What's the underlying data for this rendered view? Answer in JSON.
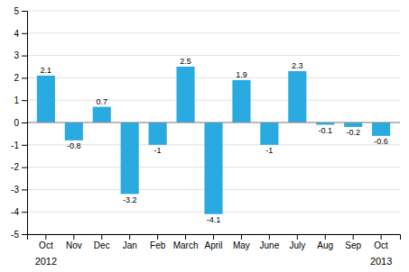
{
  "chart_data": {
    "type": "bar",
    "categories": [
      "Oct",
      "Nov",
      "Dec",
      "Jan",
      "Feb",
      "March",
      "April",
      "May",
      "June",
      "July",
      "Aug",
      "Sep",
      "Oct"
    ],
    "values": [
      2.1,
      -0.8,
      0.7,
      -3.2,
      -1.0,
      2.5,
      -4.1,
      1.9,
      -1.0,
      2.3,
      -0.1,
      -0.2,
      -0.6
    ],
    "color": "#29abe2",
    "ylim": [
      -5,
      5
    ],
    "yticks": [
      -5,
      -4,
      -3,
      -2,
      -1,
      0,
      1,
      2,
      3,
      4,
      5
    ],
    "grid": true,
    "data_labels": true,
    "annotations": [
      "2012",
      "2013"
    ]
  }
}
